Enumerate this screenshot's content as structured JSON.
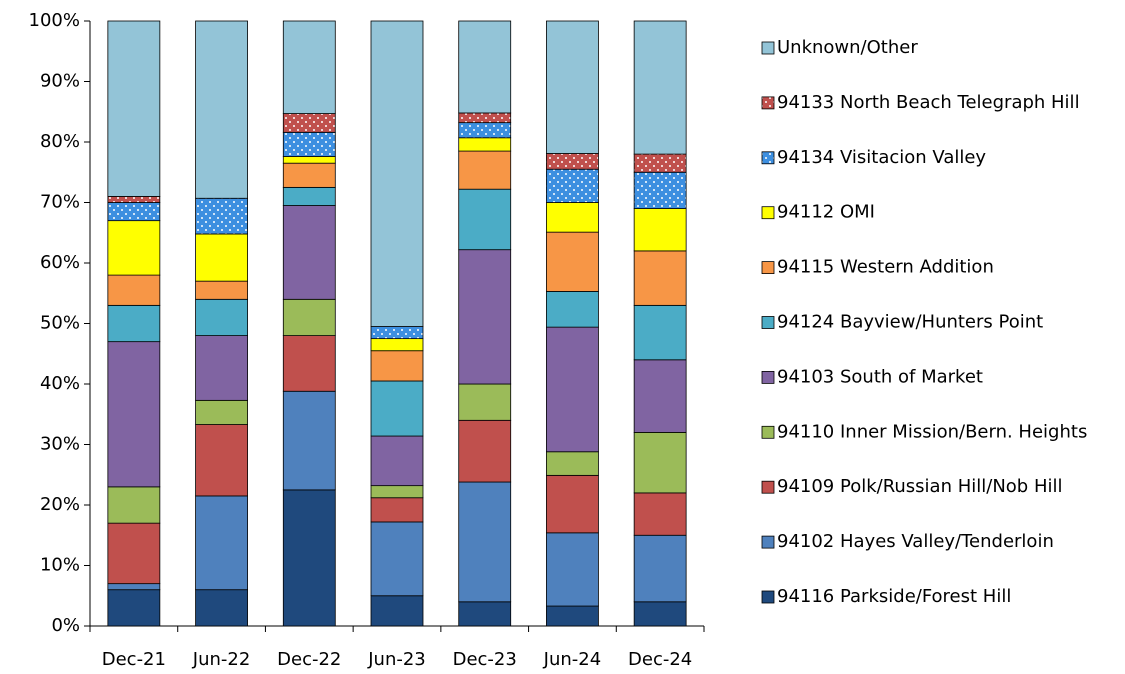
{
  "chart_data": {
    "type": "stacked_bar",
    "categories": [
      "Dec-21",
      "Jun-22",
      "Dec-22",
      "Jun-23",
      "Dec-23",
      "Jun-24",
      "Dec-24"
    ],
    "series": [
      {
        "name": "94116 Parkside/Forest Hill",
        "color": "#1f497d",
        "values": [
          6,
          6,
          22.5,
          5,
          4,
          3.3,
          4
        ]
      },
      {
        "name": "94102 Hayes Valley/Tenderloin",
        "color": "#4f81bd",
        "values": [
          1,
          15.5,
          16.3,
          12.2,
          19.8,
          12.1,
          11
        ]
      },
      {
        "name": "94109 Polk/Russian Hill/Nob Hill",
        "color": "#c0504d",
        "values": [
          10,
          11.8,
          9.2,
          4,
          10.2,
          9.5,
          7
        ]
      },
      {
        "name": "94110 Inner Mission/Bern. Heights",
        "color": "#9bbb59",
        "values": [
          6,
          4,
          6,
          2,
          6,
          3.9,
          10
        ]
      },
      {
        "name": "94103 South of Market",
        "color": "#8064a2",
        "values": [
          24,
          10.7,
          15.5,
          8.2,
          22.2,
          20.6,
          12
        ]
      },
      {
        "name": "94124 Bayview/Hunters Point",
        "color": "#4bacc6",
        "values": [
          6,
          6,
          3,
          9.1,
          10,
          5.9,
          9
        ]
      },
      {
        "name": "94115 Western Addition",
        "color": "#f79646",
        "values": [
          5,
          3,
          4,
          5,
          6.3,
          9.8,
          9
        ]
      },
      {
        "name": "94112 OMI",
        "color": "#ffff00",
        "values": [
          9,
          7.8,
          1.1,
          2,
          2.2,
          4.9,
          7
        ]
      },
      {
        "name": "94134 Visitacion Valley",
        "color": "#3d8fe0",
        "pattern": "dots",
        "values": [
          3,
          5.9,
          4,
          2,
          2.5,
          5.5,
          6
        ]
      },
      {
        "name": "94133 North Beach Telegraph Hill",
        "color": "#c0504d",
        "pattern": "dots",
        "values": [
          1,
          0,
          3.1,
          0,
          1.6,
          2.6,
          3
        ]
      },
      {
        "name": "Unknown/Other",
        "color": "#93c4d7",
        "values": [
          29,
          29.3,
          15.3,
          50.5,
          15.2,
          21.9,
          22
        ]
      }
    ],
    "ylim": [
      0,
      100
    ],
    "yticks": [
      {
        "value": 0,
        "label": "0%"
      },
      {
        "value": 10,
        "label": "10%"
      },
      {
        "value": 20,
        "label": "20%"
      },
      {
        "value": 30,
        "label": "30%"
      },
      {
        "value": 40,
        "label": "40%"
      },
      {
        "value": 50,
        "label": "50%"
      },
      {
        "value": 60,
        "label": "60%"
      },
      {
        "value": 70,
        "label": "70%"
      },
      {
        "value": 80,
        "label": "80%"
      },
      {
        "value": 90,
        "label": "90%"
      },
      {
        "value": 100,
        "label": "100%"
      }
    ],
    "grid": false,
    "legend": "right"
  }
}
